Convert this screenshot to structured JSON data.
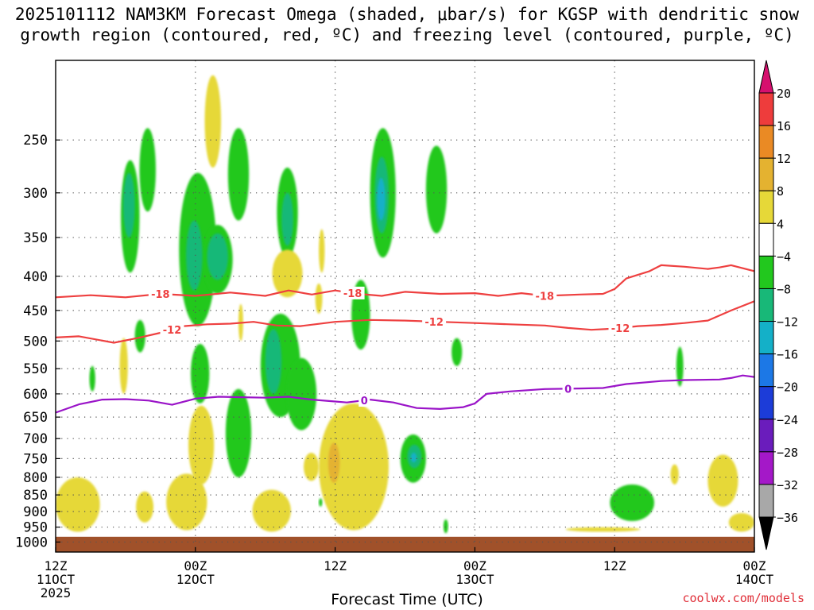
{
  "title": {
    "line1": "2025101112 NAM3KM Forecast Omega (shaded, μbar/s) for KGSP with dendritic snow",
    "line2": "growth region (contoured, red, ºC) and freezing level (contoured, purple, ºC)"
  },
  "xlabel": "Forecast Time (UTC)",
  "credit": "coolwx.com/models",
  "chart_data": {
    "type": "heatmap",
    "title": "2025101112 NAM3KM Forecast Omega (shaded, μbar/s) for KGSP with dendritic snow growth region (contoured, red, ºC) and freezing level (contoured, purple, ºC)",
    "xlabel": "Forecast Time (UTC)",
    "ylabel": "",
    "x_unit": "hours since 2025-10-11 12Z",
    "xlim": [
      0,
      60
    ],
    "ylim": [
      1035,
      190
    ],
    "y_scale": "log",
    "y_ticks": [
      250,
      300,
      350,
      400,
      450,
      500,
      550,
      600,
      650,
      700,
      750,
      800,
      850,
      900,
      950,
      1000
    ],
    "x_ticks": [
      {
        "x": 0,
        "lines": [
          "12Z",
          "11OCT",
          "2025"
        ]
      },
      {
        "x": 12,
        "lines": [
          "00Z",
          "12OCT"
        ]
      },
      {
        "x": 24,
        "lines": [
          "12Z"
        ]
      },
      {
        "x": 36,
        "lines": [
          "00Z",
          "13OCT"
        ]
      },
      {
        "x": 48,
        "lines": [
          "12Z"
        ]
      },
      {
        "x": 60,
        "lines": [
          "00Z",
          "14OCT"
        ]
      }
    ],
    "grid": true,
    "colorbar": {
      "levels": [
        20,
        16,
        12,
        8,
        4,
        -4,
        -8,
        -12,
        -16,
        -20,
        -24,
        -28,
        -32,
        -36
      ],
      "colors": [
        "#d6106e",
        "#ee3c3c",
        "#ea8a24",
        "#e4b230",
        "#e6d838",
        "#ffffff",
        "#22c81e",
        "#18b878",
        "#14b0c8",
        "#1c78e6",
        "#1c3cd8",
        "#6a1cbc",
        "#a418c8",
        "#a8a8a8",
        "#000000"
      ]
    },
    "contours": [
      {
        "name": "-18",
        "color": "#ee4040",
        "label_x": [
          9,
          25.5,
          42
        ],
        "points": [
          [
            0,
            430
          ],
          [
            3,
            427
          ],
          [
            6,
            430
          ],
          [
            9,
            425
          ],
          [
            12,
            428
          ],
          [
            15,
            423
          ],
          [
            18,
            428
          ],
          [
            20,
            420
          ],
          [
            22,
            426
          ],
          [
            24,
            420
          ],
          [
            26,
            425
          ],
          [
            28,
            428
          ],
          [
            30,
            422
          ],
          [
            33,
            425
          ],
          [
            36,
            424
          ],
          [
            38,
            428
          ],
          [
            40,
            424
          ],
          [
            42,
            428
          ],
          [
            45,
            426
          ],
          [
            47,
            425
          ],
          [
            48,
            418
          ],
          [
            49,
            403
          ],
          [
            51,
            393
          ],
          [
            52,
            385
          ],
          [
            54,
            387
          ],
          [
            56,
            390
          ],
          [
            57,
            388
          ],
          [
            58,
            385
          ],
          [
            60,
            393
          ]
        ]
      },
      {
        "name": "-12",
        "color": "#ee4040",
        "label_x": [
          10,
          32.5,
          48.5
        ],
        "points": [
          [
            0,
            494
          ],
          [
            2,
            492
          ],
          [
            5,
            503
          ],
          [
            7,
            495
          ],
          [
            9,
            486
          ],
          [
            11,
            475
          ],
          [
            13,
            472
          ],
          [
            15,
            471
          ],
          [
            17,
            468
          ],
          [
            19,
            474
          ],
          [
            21,
            475
          ],
          [
            24,
            468
          ],
          [
            27,
            465
          ],
          [
            30,
            466
          ],
          [
            33,
            468
          ],
          [
            36,
            470
          ],
          [
            39,
            472
          ],
          [
            42,
            474
          ],
          [
            44,
            478
          ],
          [
            46,
            481
          ],
          [
            48,
            479
          ],
          [
            50,
            475
          ],
          [
            52,
            473
          ],
          [
            54,
            470
          ],
          [
            56,
            466
          ],
          [
            58,
            450
          ],
          [
            60,
            436
          ]
        ]
      },
      {
        "name": "0",
        "color": "#9a14c8",
        "label_x": [
          26.5,
          44
        ],
        "points": [
          [
            0,
            640
          ],
          [
            2,
            622
          ],
          [
            4,
            612
          ],
          [
            6,
            611
          ],
          [
            8,
            614
          ],
          [
            10,
            623
          ],
          [
            12,
            610
          ],
          [
            14,
            606
          ],
          [
            16,
            607
          ],
          [
            18,
            608
          ],
          [
            20,
            606
          ],
          [
            22,
            612
          ],
          [
            24,
            616
          ],
          [
            25,
            618
          ],
          [
            27,
            612
          ],
          [
            29,
            618
          ],
          [
            31,
            630
          ],
          [
            33,
            632
          ],
          [
            35,
            628
          ],
          [
            36,
            620
          ],
          [
            37,
            600
          ],
          [
            39,
            595
          ],
          [
            42,
            590
          ],
          [
            45,
            589
          ],
          [
            47,
            588
          ],
          [
            49,
            580
          ],
          [
            52,
            574
          ],
          [
            54,
            572
          ],
          [
            57,
            571
          ],
          [
            58,
            568
          ],
          [
            59,
            563
          ],
          [
            60,
            566
          ]
        ]
      }
    ],
    "shaded_regions": [
      {
        "value": -6,
        "t0": 5.6,
        "t1": 7.2,
        "p0": 268,
        "p1": 395
      },
      {
        "value": -6,
        "t0": 7.2,
        "t1": 8.6,
        "p0": 240,
        "p1": 320
      },
      {
        "value": -6,
        "t0": 10.6,
        "t1": 13.8,
        "p0": 280,
        "p1": 475
      },
      {
        "value": -6,
        "t0": 12.6,
        "t1": 15.2,
        "p0": 335,
        "p1": 425
      },
      {
        "value": -6,
        "t0": 14.8,
        "t1": 16.6,
        "p0": 240,
        "p1": 330
      },
      {
        "value": -6,
        "t0": 19.0,
        "t1": 20.8,
        "p0": 275,
        "p1": 375
      },
      {
        "value": -6,
        "t0": 27.0,
        "t1": 29.2,
        "p0": 240,
        "p1": 375
      },
      {
        "value": -6,
        "t0": 31.8,
        "t1": 33.6,
        "p0": 255,
        "p1": 345
      },
      {
        "value": -6,
        "t0": 17.6,
        "t1": 21.0,
        "p0": 455,
        "p1": 650
      },
      {
        "value": -6,
        "t0": 19.8,
        "t1": 22.4,
        "p0": 530,
        "p1": 680
      },
      {
        "value": -6,
        "t0": 14.6,
        "t1": 16.8,
        "p0": 590,
        "p1": 800
      },
      {
        "value": -6,
        "t0": 25.4,
        "t1": 27.0,
        "p0": 405,
        "p1": 515
      },
      {
        "value": -6,
        "t0": 29.6,
        "t1": 31.8,
        "p0": 690,
        "p1": 815
      },
      {
        "value": -6,
        "t0": 11.6,
        "t1": 13.2,
        "p0": 505,
        "p1": 620
      },
      {
        "value": -6,
        "t0": 6.8,
        "t1": 7.7,
        "p0": 465,
        "p1": 520
      },
      {
        "value": -6,
        "t0": 2.9,
        "t1": 3.4,
        "p0": 545,
        "p1": 595
      },
      {
        "value": -6,
        "t0": 34.0,
        "t1": 34.9,
        "p0": 495,
        "p1": 545
      },
      {
        "value": -6,
        "t0": 53.3,
        "t1": 53.9,
        "p0": 510,
        "p1": 585
      },
      {
        "value": -6,
        "t0": 47.6,
        "t1": 51.4,
        "p0": 820,
        "p1": 930
      },
      {
        "value": -6,
        "t0": 33.3,
        "t1": 33.7,
        "p0": 925,
        "p1": 970
      },
      {
        "value": -6,
        "t0": 22.6,
        "t1": 22.9,
        "p0": 860,
        "p1": 885
      },
      {
        "value": -10,
        "t0": 5.8,
        "t1": 6.8,
        "p0": 280,
        "p1": 350
      },
      {
        "value": -10,
        "t0": 11.2,
        "t1": 12.6,
        "p0": 330,
        "p1": 420
      },
      {
        "value": -10,
        "t0": 13.0,
        "t1": 14.8,
        "p0": 345,
        "p1": 405
      },
      {
        "value": -10,
        "t0": 19.4,
        "t1": 20.4,
        "p0": 300,
        "p1": 360
      },
      {
        "value": -10,
        "t0": 27.4,
        "t1": 28.6,
        "p0": 265,
        "p1": 345
      },
      {
        "value": -10,
        "t0": 18.0,
        "t1": 19.4,
        "p0": 480,
        "p1": 600
      },
      {
        "value": -10,
        "t0": 30.2,
        "t1": 31.4,
        "p0": 715,
        "p1": 775
      },
      {
        "value": -14,
        "t0": 27.6,
        "t1": 28.3,
        "p0": 285,
        "p1": 330
      },
      {
        "value": -14,
        "t0": 30.5,
        "t1": 31.0,
        "p0": 735,
        "p1": 760
      },
      {
        "value": 5,
        "t0": 12.8,
        "t1": 14.2,
        "p0": 200,
        "p1": 275
      },
      {
        "value": 5,
        "t0": 18.6,
        "t1": 21.2,
        "p0": 365,
        "p1": 430
      },
      {
        "value": 5,
        "t0": 22.6,
        "t1": 23.1,
        "p0": 340,
        "p1": 395
      },
      {
        "value": 5,
        "t0": 22.3,
        "t1": 22.9,
        "p0": 410,
        "p1": 455
      },
      {
        "value": 5,
        "t0": 15.7,
        "t1": 16.1,
        "p0": 440,
        "p1": 500
      },
      {
        "value": 5,
        "t0": 5.5,
        "t1": 6.2,
        "p0": 495,
        "p1": 600
      },
      {
        "value": 5,
        "t0": 0.0,
        "t1": 3.8,
        "p0": 800,
        "p1": 965
      },
      {
        "value": 5,
        "t0": 6.9,
        "t1": 8.4,
        "p0": 840,
        "p1": 935
      },
      {
        "value": 5,
        "t0": 9.5,
        "t1": 13.0,
        "p0": 790,
        "p1": 960
      },
      {
        "value": 5,
        "t0": 11.4,
        "t1": 13.6,
        "p0": 625,
        "p1": 820
      },
      {
        "value": 5,
        "t0": 16.9,
        "t1": 20.2,
        "p0": 835,
        "p1": 965
      },
      {
        "value": 5,
        "t0": 22.6,
        "t1": 28.6,
        "p0": 620,
        "p1": 960
      },
      {
        "value": 5,
        "t0": 21.3,
        "t1": 22.6,
        "p0": 735,
        "p1": 810
      },
      {
        "value": 5,
        "t0": 43.8,
        "t1": 50.2,
        "p0": 950,
        "p1": 965
      },
      {
        "value": 5,
        "t0": 52.8,
        "t1": 53.5,
        "p0": 765,
        "p1": 820
      },
      {
        "value": 5,
        "t0": 56.0,
        "t1": 58.6,
        "p0": 740,
        "p1": 885
      },
      {
        "value": 5,
        "t0": 57.8,
        "t1": 60.0,
        "p0": 905,
        "p1": 965
      },
      {
        "value": 9,
        "t0": 23.4,
        "t1": 24.4,
        "p0": 710,
        "p1": 815
      },
      {
        "value": 9,
        "t0": 23.6,
        "t1": 24.2,
        "p0": 760,
        "p1": 790
      }
    ],
    "ground": {
      "color": "#a0512a",
      "p_top": 982
    }
  }
}
